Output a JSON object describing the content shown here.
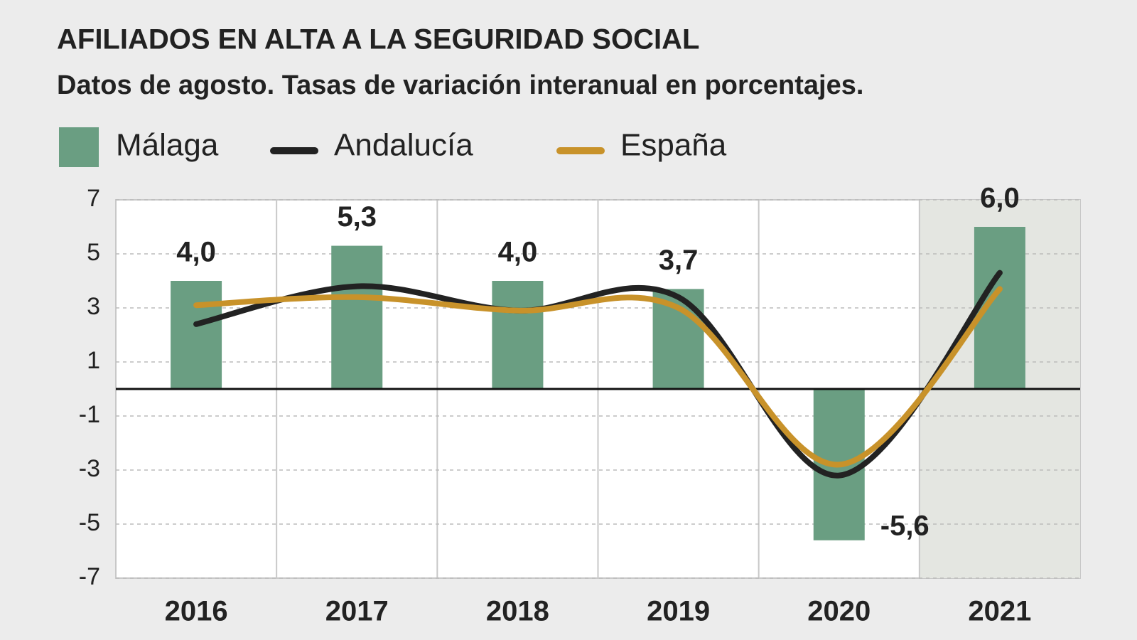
{
  "chart_data": {
    "type": "bar-line",
    "title": "AFILIADOS EN ALTA A LA SEGURIDAD SOCIAL",
    "subtitle": "Datos de agosto. Tasas de variación interanual en porcentajes.",
    "categories": [
      "2016",
      "2017",
      "2018",
      "2019",
      "2020",
      "2021"
    ],
    "series": [
      {
        "name": "Málaga",
        "type": "bar",
        "color": "#6a9e82",
        "values": [
          4.0,
          5.3,
          4.0,
          3.7,
          -5.6,
          6.0
        ],
        "value_labels": [
          "4,0",
          "5,3",
          "4,0",
          "3,7",
          "-5,6",
          "6,0"
        ]
      },
      {
        "name": "Andalucía",
        "type": "line",
        "color": "#222222",
        "values": [
          2.4,
          3.8,
          2.9,
          3.4,
          -3.2,
          4.3
        ]
      },
      {
        "name": "España",
        "type": "line",
        "color": "#c8922a",
        "values": [
          3.1,
          3.4,
          2.9,
          3.0,
          -2.8,
          3.7
        ]
      }
    ],
    "ylim": [
      -7,
      7
    ],
    "yticks": [
      7,
      5,
      3,
      1,
      -1,
      -3,
      -5,
      -7
    ],
    "grid": true,
    "highlight_category": "2021"
  }
}
